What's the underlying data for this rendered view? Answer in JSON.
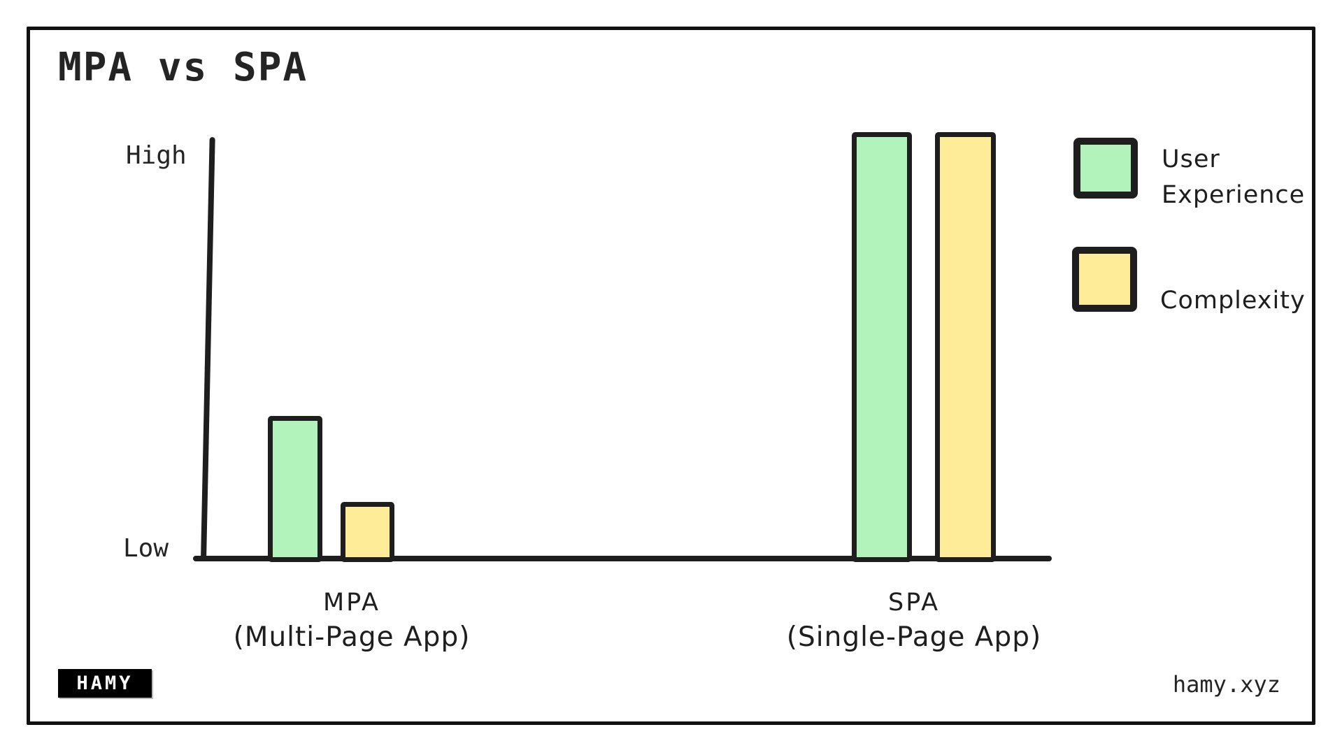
{
  "page": {
    "title": "MPA vs SPA"
  },
  "y_axis": {
    "high": "High",
    "low": "Low"
  },
  "x_axis": {
    "mpa": {
      "name": "MPA",
      "subtitle": "(Multi-Page App)"
    },
    "spa": {
      "name": "SPA",
      "subtitle": "(Single-Page App)"
    }
  },
  "footer": {
    "logo": "HAMY",
    "site": "hamy.xyz"
  },
  "chart_data": {
    "type": "bar",
    "title": "MPA vs SPA",
    "categories": [
      "MPA (Multi-Page App)",
      "SPA (Single-Page App)"
    ],
    "series": [
      {
        "name": "User Experience",
        "color": "#b2f2bb",
        "values": [
          0.34,
          1.0
        ]
      },
      {
        "name": "Complexity",
        "color": "#ffec99",
        "values": [
          0.14,
          1.0
        ]
      }
    ],
    "value_axis": {
      "min": 0,
      "max": 1,
      "min_label": "Low",
      "max_label": "High"
    },
    "grid": false,
    "legend_position": "right",
    "stroke_color": "#1e1e1e",
    "style": "hand-drawn"
  }
}
